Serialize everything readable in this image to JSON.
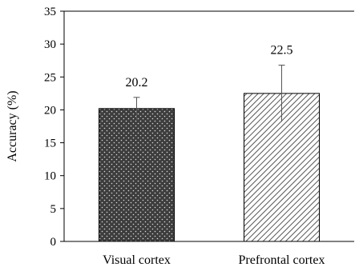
{
  "chart_data": {
    "type": "bar",
    "title": "",
    "xlabel": "",
    "ylabel": "Accuracy (%)",
    "ylim": [
      0,
      35
    ],
    "yticks": [
      0,
      5,
      10,
      15,
      20,
      25,
      30,
      35
    ],
    "grid": false,
    "legend": "none",
    "categories": [
      "Visual cortex",
      "Prefrontal cortex"
    ],
    "values": [
      20.2,
      22.5
    ],
    "error_bars": [
      1.7,
      4.3
    ],
    "data_labels": [
      "20.2",
      "22.5"
    ],
    "patterns": [
      "dark-dotted",
      "diagonal-hatch"
    ],
    "colors": {
      "dark_fill": "#3d3d3d",
      "dot": "#d8d8d8",
      "hatch_line": "#555555",
      "axis": "#000000",
      "error_bar": "#555555"
    }
  }
}
